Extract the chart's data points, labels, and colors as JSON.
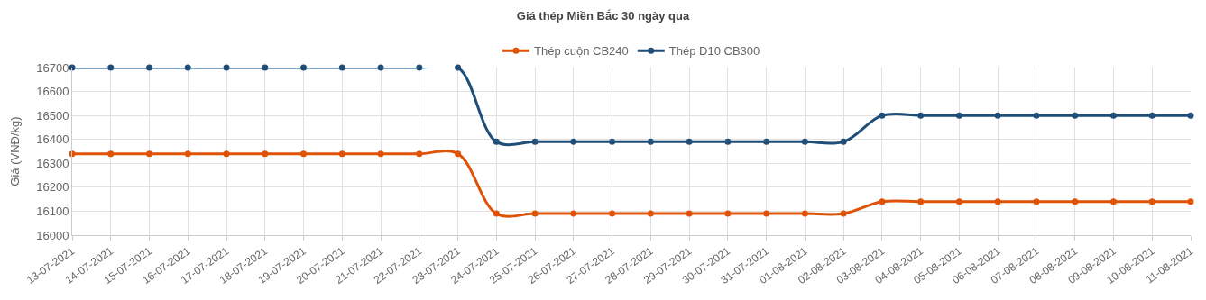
{
  "chart_data": {
    "type": "line",
    "title": "Giá thép Miền Bắc 30 ngày qua",
    "ylabel": "Giá (VNĐ/kg)",
    "categories": [
      "13-07-2021",
      "14-07-2021",
      "15-07-2021",
      "16-07-2021",
      "17-07-2021",
      "18-07-2021",
      "19-07-2021",
      "20-07-2021",
      "21-07-2021",
      "22-07-2021",
      "23-07-2021",
      "24-07-2021",
      "25-07-2021",
      "26-07-2021",
      "27-07-2021",
      "28-07-2021",
      "29-07-2021",
      "30-07-2021",
      "31-07-2021",
      "01-08-2021",
      "02-08-2021",
      "03-08-2021",
      "04-08-2021",
      "05-08-2021",
      "06-08-2021",
      "07-08-2021",
      "08-08-2021",
      "09-08-2021",
      "10-08-2021",
      "11-08-2021"
    ],
    "series": [
      {
        "name": "Thép cuộn CB240",
        "color": "#e05206",
        "values": [
          16340,
          16340,
          16340,
          16340,
          16340,
          16340,
          16340,
          16340,
          16340,
          16340,
          16340,
          16090,
          16090,
          16090,
          16090,
          16090,
          16090,
          16090,
          16090,
          16090,
          16090,
          16140,
          16140,
          16140,
          16140,
          16140,
          16140,
          16140,
          16140,
          16140
        ]
      },
      {
        "name": "Thép D10 CB300",
        "color": "#1f4e79",
        "values": [
          16700,
          16700,
          16700,
          16700,
          16700,
          16700,
          16700,
          16700,
          16700,
          16700,
          16700,
          16390,
          16390,
          16390,
          16390,
          16390,
          16390,
          16390,
          16390,
          16390,
          16390,
          16500,
          16500,
          16500,
          16500,
          16500,
          16500,
          16500,
          16500,
          16500
        ]
      }
    ],
    "ylim": [
      16000,
      16700
    ],
    "yticks": [
      16000,
      16100,
      16200,
      16300,
      16400,
      16500,
      16600,
      16700
    ],
    "grid": true,
    "legend": "top",
    "marker": "circle",
    "line_style": "solid"
  }
}
